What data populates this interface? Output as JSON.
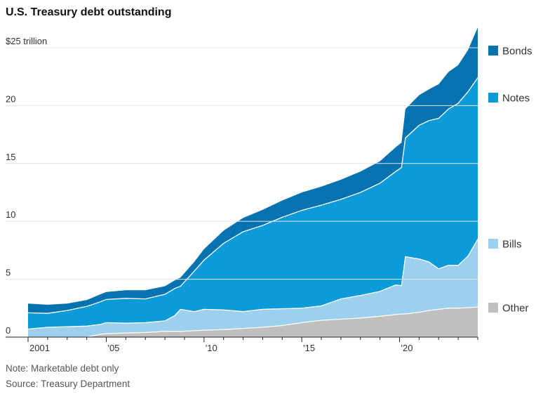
{
  "chart_data": {
    "type": "area",
    "stacked": true,
    "title": "U.S. Treasury debt outstanding",
    "y_unit_label": "$25 trillion",
    "xlim": [
      2001,
      2024
    ],
    "ylim": [
      0,
      27
    ],
    "y_ticks": [
      0,
      5,
      10,
      15,
      20,
      25
    ],
    "y_tick_labels": [
      "0",
      "5",
      "10",
      "15",
      "20",
      "$25 trillion"
    ],
    "x_ticks": [
      2001,
      2005,
      2010,
      2015,
      2020
    ],
    "x_tick_labels": [
      "2001",
      "'05",
      "'10",
      "'15",
      "'20"
    ],
    "grid": "horizontal",
    "legend_placement": "right",
    "x": [
      2001,
      2002,
      2003,
      2004,
      2004.7,
      2005,
      2006,
      2007,
      2008,
      2008.5,
      2008.8,
      2009.5,
      2010,
      2011,
      2012,
      2013,
      2014,
      2015,
      2016,
      2017,
      2018,
      2019,
      2019.8,
      2020.1,
      2020.3,
      2021,
      2021.5,
      2022,
      2022.5,
      2023,
      2023.5,
      2024
    ],
    "series": [
      {
        "name": "Other",
        "color": "#bfbfbf",
        "values": [
          0,
          0,
          0,
          0,
          0.25,
          0.3,
          0.35,
          0.4,
          0.5,
          0.5,
          0.5,
          0.55,
          0.6,
          0.65,
          0.75,
          0.85,
          1.0,
          1.25,
          1.45,
          1.55,
          1.65,
          1.8,
          1.95,
          2.0,
          2.0,
          2.15,
          2.3,
          2.4,
          2.5,
          2.5,
          2.55,
          2.6
        ]
      },
      {
        "name": "Bills",
        "color": "#9dcfee",
        "values": [
          0.7,
          0.85,
          0.9,
          0.95,
          0.85,
          0.95,
          0.85,
          0.85,
          0.9,
          1.35,
          1.9,
          1.65,
          1.8,
          1.7,
          1.45,
          1.55,
          1.45,
          1.25,
          1.25,
          1.75,
          1.95,
          2.15,
          2.55,
          2.45,
          4.95,
          4.6,
          4.2,
          3.5,
          3.7,
          3.7,
          4.45,
          5.85
        ]
      },
      {
        "name": "Notes",
        "color": "#0d9ad8",
        "values": [
          1.4,
          1.2,
          1.4,
          1.7,
          1.95,
          2.0,
          2.15,
          2.05,
          2.3,
          2.35,
          2.0,
          3.5,
          4.25,
          5.75,
          6.9,
          7.25,
          7.9,
          8.45,
          8.7,
          8.6,
          8.9,
          9.35,
          9.8,
          10.2,
          10.25,
          11.55,
          12.2,
          13.0,
          13.5,
          14.0,
          14.2,
          13.95
        ]
      },
      {
        "name": "Bonds",
        "color": "#0772b0",
        "values": [
          0.8,
          0.75,
          0.6,
          0.55,
          0.65,
          0.65,
          0.7,
          0.75,
          0.7,
          0.7,
          0.75,
          0.8,
          0.95,
          1.1,
          1.2,
          1.35,
          1.45,
          1.55,
          1.6,
          1.7,
          1.8,
          1.9,
          2.1,
          2.15,
          2.5,
          2.6,
          2.7,
          2.95,
          3.2,
          3.3,
          3.6,
          4.35
        ]
      }
    ],
    "notes": [
      "Note: Marketable debt only",
      "Source: Treasury Department"
    ]
  }
}
